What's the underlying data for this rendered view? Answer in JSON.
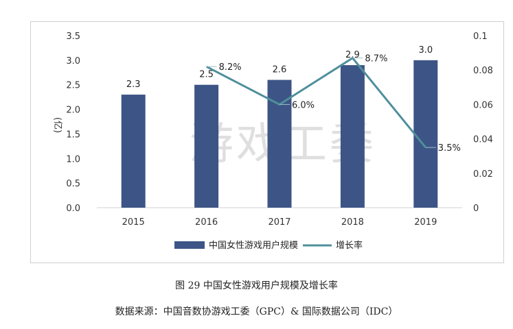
{
  "chart_data": {
    "type": "bar+line",
    "categories": [
      "2015",
      "2016",
      "2017",
      "2018",
      "2019"
    ],
    "series": [
      {
        "name": "中国女性游戏用户规模",
        "type": "bar",
        "axis": "left",
        "values": [
          2.3,
          2.5,
          2.6,
          2.9,
          3.0
        ],
        "labels": [
          "2.3",
          "2.5",
          "2.6",
          "2.9",
          "3.0"
        ],
        "color": "#3d5586"
      },
      {
        "name": "增长率",
        "type": "line",
        "axis": "right",
        "x": [
          "2016",
          "2017",
          "2018",
          "2019"
        ],
        "values": [
          0.082,
          0.06,
          0.087,
          0.035
        ],
        "labels": [
          "8.2%",
          "6.0%",
          "8.7%",
          "3.5%"
        ],
        "color": "#4f8f9b"
      }
    ],
    "ylabel": "(亿)",
    "ylim": [
      0,
      3.5
    ],
    "y_ticks": [
      "0.0",
      "0.5",
      "1.0",
      "1.5",
      "2.0",
      "2.5",
      "3.0",
      "3.5"
    ],
    "y2lim": [
      0,
      0.1
    ],
    "y2_ticks": [
      "0",
      "0.02",
      "0.04",
      "0.06",
      "0.08",
      "0.1"
    ],
    "legend_position": "bottom",
    "grid": false,
    "watermark": "游戏工委"
  },
  "captions": {
    "figure": "图 29  中国女性游戏用户规模及增长率",
    "source": "数据来源：中国音数协游戏工委（GPC）& 国际数据公司（IDC）"
  }
}
